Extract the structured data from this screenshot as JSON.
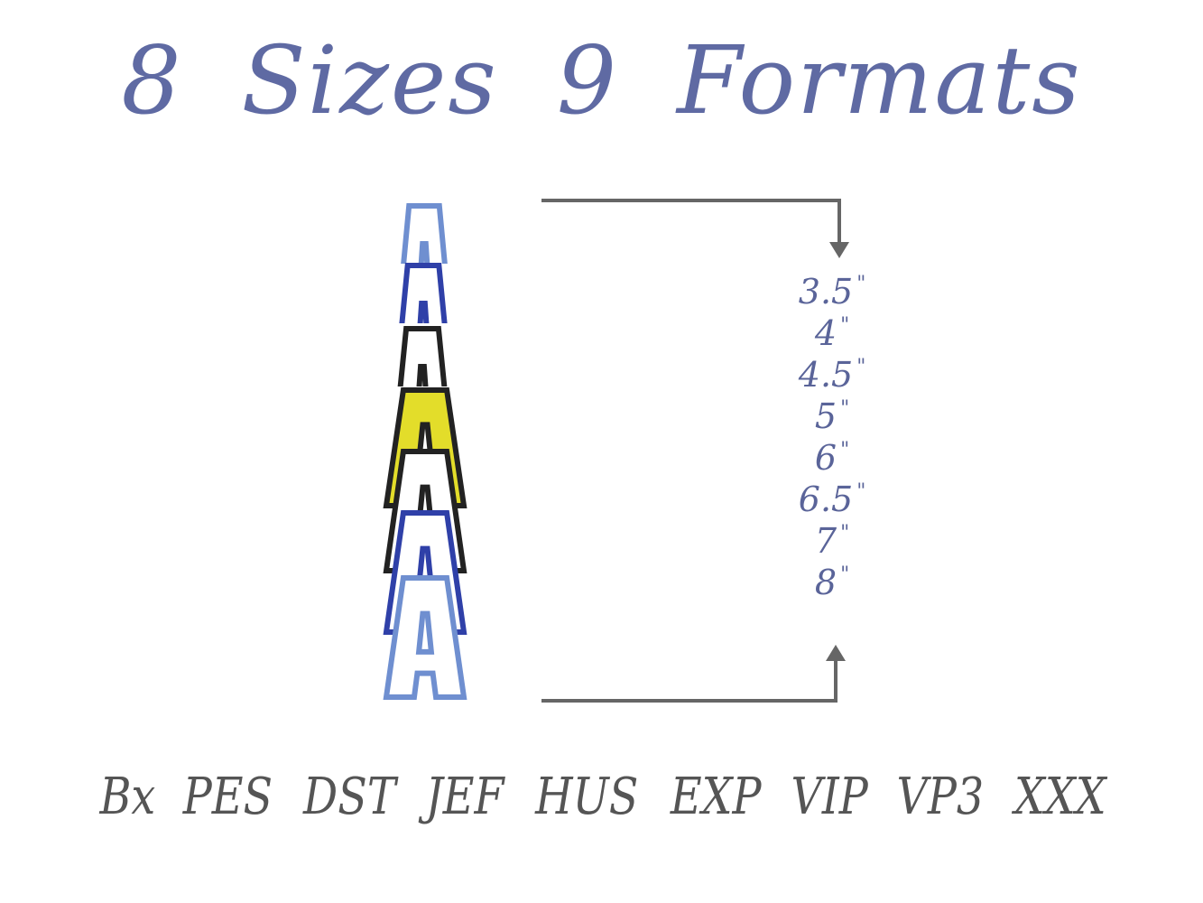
{
  "title": "8 Sizes  9 Formats",
  "sizes": [
    {
      "value": "3.5",
      "unit": "\""
    },
    {
      "value": "4",
      "unit": "\""
    },
    {
      "value": "4.5",
      "unit": "\""
    },
    {
      "value": "5",
      "unit": "\""
    },
    {
      "value": "6",
      "unit": "\""
    },
    {
      "value": "6.5",
      "unit": "\""
    },
    {
      "value": "7",
      "unit": "\""
    },
    {
      "value": "8",
      "unit": "\""
    }
  ],
  "formats": [
    "Bx",
    "PES",
    "DST",
    "JEF",
    "HUS",
    "EXP",
    "VIP",
    "VP3",
    "XXX"
  ],
  "letter_samples": [
    {
      "color": "#6f8fd0",
      "fill": "#ffffff"
    },
    {
      "color": "#2f40a8",
      "fill": "#ffffff"
    },
    {
      "color": "#222222",
      "fill": "#ffffff"
    },
    {
      "color": "#222222",
      "fill": "#e3dd2a"
    },
    {
      "color": "#222222",
      "fill": "#ffffff"
    },
    {
      "color": "#2f40a8",
      "fill": "#ffffff"
    },
    {
      "color": "#6f8fd0",
      "fill": "#ffffff"
    }
  ],
  "colors": {
    "text": "#5f6aa3",
    "arrow": "#666666",
    "formats": "#555555"
  }
}
